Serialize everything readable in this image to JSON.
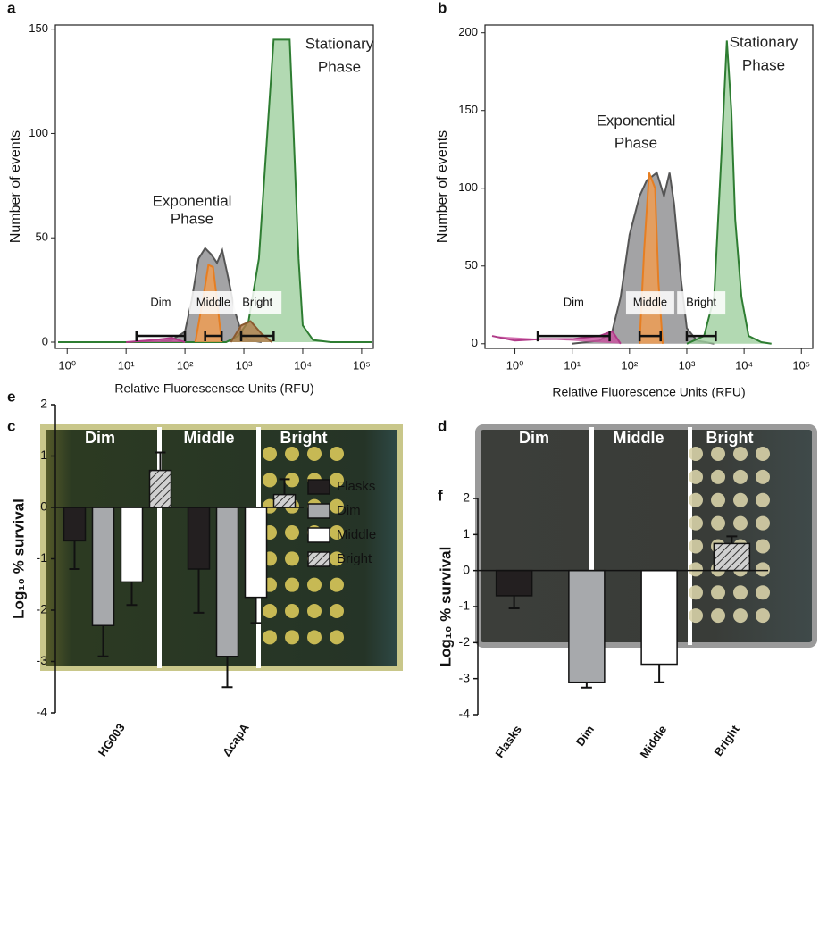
{
  "chart_data": [
    {
      "type": "area",
      "panel": "a",
      "xscale": "log",
      "xlim": [
        0.63,
        158000
      ],
      "ylim": [
        -3,
        152
      ],
      "xticks": [
        {
          "value": 1,
          "label": "10⁰"
        },
        {
          "value": 10,
          "label": "10¹"
        },
        {
          "value": 100,
          "label": "10²"
        },
        {
          "value": 1000,
          "label": "10³"
        },
        {
          "value": 10000,
          "label": "10⁴"
        },
        {
          "value": 100000,
          "label": "10⁵"
        }
      ],
      "yticks": [
        0,
        50,
        100,
        150
      ],
      "xlabel": "Relative Fluorescensce Units (RFU)",
      "ylabel": "Number of events",
      "annotations": [
        {
          "lines": [
            "Exponential",
            "Phase"
          ]
        },
        {
          "lines": [
            "Stationary",
            "Phase"
          ]
        }
      ],
      "series": [
        {
          "color": "#8c8c8e",
          "edge": "#555555",
          "x": [
            30,
            60,
            100,
            130,
            170,
            220,
            280,
            350,
            430,
            550,
            700,
            900,
            1200,
            2000
          ],
          "values": [
            0,
            1,
            5,
            20,
            40,
            45,
            42,
            38,
            44,
            30,
            15,
            5,
            1,
            0
          ]
        },
        {
          "color": "#9fd09f",
          "edge": "#2e7d32",
          "x": [
            0.7,
            500,
            800,
            1200,
            1800,
            2500,
            3200,
            6000,
            7000,
            8500,
            10000,
            15000,
            30000,
            150000
          ],
          "values": [
            0,
            0,
            3,
            10,
            40,
            100,
            145,
            145,
            100,
            40,
            8,
            1,
            0,
            0
          ]
        },
        {
          "color": "#f39c4f",
          "edge": "#e67e22",
          "x": [
            150,
            200,
            250,
            300,
            350,
            420
          ],
          "values": [
            0,
            20,
            37,
            36,
            20,
            0
          ]
        },
        {
          "color": "#c9509f",
          "edge": "#b03a88",
          "x": [
            10,
            30,
            60,
            100
          ],
          "values": [
            0,
            1,
            2,
            0
          ]
        },
        {
          "color": "#b07a4a",
          "edge": "#8a5a30",
          "x": [
            600,
            900,
            1300,
            2000,
            3000
          ],
          "values": [
            0,
            8,
            10,
            4,
            0
          ]
        }
      ],
      "gates": [
        {
          "label": "Dim",
          "range": [
            15,
            100
          ],
          "y": 3
        },
        {
          "label": "Middle",
          "range": [
            220,
            420
          ],
          "y": 3
        },
        {
          "label": "Bright",
          "range": [
            900,
            3200
          ],
          "y": 3
        }
      ]
    },
    {
      "type": "area",
      "panel": "b",
      "xscale": "log",
      "xlim": [
        0.3,
        158000
      ],
      "ylim": [
        -3,
        205
      ],
      "xticks": [
        {
          "value": 1,
          "label": "10⁰"
        },
        {
          "value": 10,
          "label": "10¹"
        },
        {
          "value": 100,
          "label": "10²"
        },
        {
          "value": 1000,
          "label": "10³"
        },
        {
          "value": 10000,
          "label": "10⁴"
        },
        {
          "value": 100000,
          "label": "10⁵"
        }
      ],
      "yticks": [
        0,
        50,
        100,
        150,
        200
      ],
      "xlabel": "Relative Fluorescence Units (RFU)",
      "ylabel": "Number of events",
      "annotations": [
        {
          "lines": [
            "Exponential",
            "Phase"
          ]
        },
        {
          "lines": [
            "Stationary",
            "Phase"
          ]
        }
      ],
      "series": [
        {
          "color": "#8c8c8e",
          "edge": "#555555",
          "x": [
            10,
            30,
            50,
            70,
            100,
            150,
            200,
            300,
            400,
            500,
            600,
            800,
            1000,
            1500,
            3000
          ],
          "values": [
            0,
            2,
            8,
            30,
            70,
            95,
            105,
            110,
            95,
            110,
            90,
            40,
            10,
            2,
            0
          ]
        },
        {
          "color": "#9fd09f",
          "edge": "#2e7d32",
          "x": [
            1000,
            2000,
            3000,
            4000,
            5000,
            6000,
            7000,
            9000,
            12000,
            20000,
            30000
          ],
          "values": [
            0,
            5,
            30,
            120,
            195,
            150,
            80,
            30,
            5,
            1,
            0
          ]
        },
        {
          "color": "#f39c4f",
          "edge": "#e67e22",
          "x": [
            150,
            180,
            220,
            280,
            320,
            380
          ],
          "values": [
            0,
            60,
            110,
            100,
            40,
            0
          ]
        },
        {
          "color": "#c9509f",
          "edge": "#b03a88",
          "x": [
            0.4,
            1,
            3,
            10,
            30,
            50,
            70
          ],
          "values": [
            5,
            2,
            3,
            3,
            5,
            8,
            0
          ]
        }
      ],
      "gates": [
        {
          "label": "Dim",
          "range": [
            2.5,
            45
          ],
          "y": 5
        },
        {
          "label": "Middle",
          "range": [
            150,
            350
          ],
          "y": 5
        },
        {
          "label": "Bright",
          "range": [
            1000,
            3200
          ],
          "y": 5
        }
      ]
    },
    {
      "type": "bar",
      "panel": "e",
      "ylim": [
        -4,
        2
      ],
      "yticks": [
        -4,
        -3,
        -2,
        -1,
        0,
        1,
        2
      ],
      "ylabel": "Log₁₀ % survival",
      "legend": "right",
      "categories": [
        "HG003",
        "ΔcapA"
      ],
      "series": [
        {
          "name": "Flasks",
          "color": "#231f20",
          "values": [
            -0.65,
            -1.2
          ],
          "errors": [
            0.55,
            0.85
          ]
        },
        {
          "name": "Dim",
          "color": "#a7a9ac",
          "values": [
            -2.3,
            -2.9
          ],
          "errors": [
            0.6,
            0.6
          ]
        },
        {
          "name": "Middle",
          "color": "#ffffff",
          "values": [
            -1.45,
            -1.75
          ],
          "errors": [
            0.45,
            0.5
          ]
        },
        {
          "name": "Bright",
          "color": "#bbbbbb",
          "hatched": true,
          "values": [
            0.72,
            0.25
          ],
          "errors": [
            0.35,
            0.3
          ]
        }
      ]
    },
    {
      "type": "bar",
      "panel": "f",
      "ylim": [
        -4,
        2
      ],
      "yticks": [
        -4,
        -3,
        -2,
        -1,
        0,
        1,
        2
      ],
      "ylabel": "Log₁₀ % survival",
      "categories": [
        "Flasks",
        "Dim",
        "Middle",
        "Bright"
      ],
      "values": [
        -0.7,
        -3.1,
        -2.6,
        0.75
      ],
      "errors": [
        0.35,
        0.15,
        0.5,
        0.2
      ],
      "colors": [
        "#231f20",
        "#a7a9ac",
        "#ffffff",
        "#bbbbbb"
      ],
      "hatched": [
        false,
        false,
        false,
        true
      ]
    }
  ],
  "photos": [
    {
      "panel": "c",
      "labels": [
        "Dim",
        "Middle",
        "Bright"
      ]
    },
    {
      "panel": "d",
      "labels": [
        "Dim",
        "Middle",
        "Bright"
      ]
    }
  ]
}
